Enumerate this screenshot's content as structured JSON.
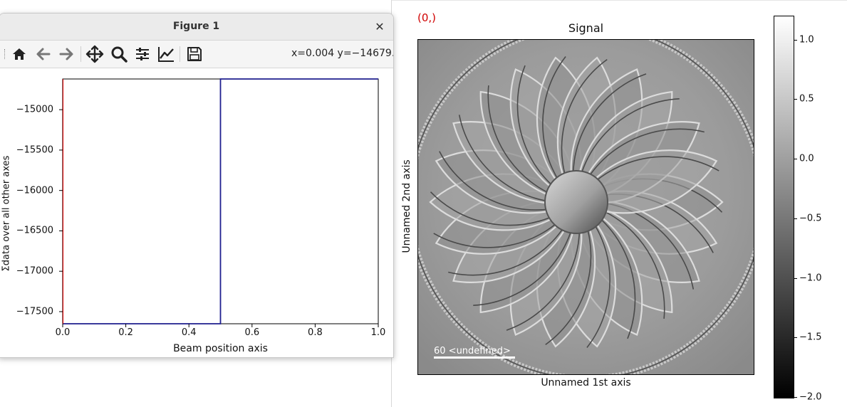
{
  "signal_figure": {
    "index_label": "(0,)",
    "index_label_color": "#d00000",
    "title": "Signal",
    "x_axis_label": "Unnamed 1st axis",
    "y_axis_label": "Unnamed 2nd axis",
    "scalebar_text": "60 <undefined>",
    "colorbar": {
      "min": -2.0,
      "max": 1.2,
      "ticks": [
        "1.0",
        "0.5",
        "0.0",
        "−0.5",
        "−1.0",
        "−1.5",
        "−2.0"
      ],
      "tick_values": [
        1.0,
        0.5,
        0.0,
        -0.5,
        -1.0,
        -1.5,
        -2.0
      ]
    },
    "image_icon": "rosette-pattern-grayscale-image"
  },
  "figure_window": {
    "title": "Figure 1",
    "close_icon": "close-icon",
    "toolbar": {
      "buttons": [
        "home-icon",
        "back-icon",
        "forward-icon",
        "pan-icon",
        "zoom-icon",
        "configure-subplots-icon",
        "edit-axes-icon",
        "save-icon"
      ]
    },
    "coord_readout": "x=0.004 y=−14679."
  },
  "chart_data": {
    "type": "line",
    "title": "",
    "xlabel": "Beam position axis",
    "ylabel": "Σdata over all other axes",
    "xlim": [
      0.0,
      1.0
    ],
    "ylim": [
      -17650,
      -14620
    ],
    "x_ticks": [
      "0.0",
      "0.2",
      "0.4",
      "0.6",
      "0.8",
      "1.0"
    ],
    "x_tick_values": [
      0.0,
      0.2,
      0.4,
      0.6,
      0.8,
      1.0
    ],
    "y_ticks": [
      "−15000",
      "−15500",
      "−16000",
      "−16500",
      "−17000",
      "−17500"
    ],
    "y_tick_values": [
      -15000,
      -15500,
      -16000,
      -16500,
      -17000,
      -17500
    ],
    "series": [
      {
        "color": "#1f1f8f",
        "x": [
          0.0,
          0.5,
          0.5,
          1.0
        ],
        "y": [
          -17650,
          -17650,
          -14620,
          -14620
        ]
      }
    ],
    "vertical_marker": {
      "x": 0.0,
      "color": "#e00000"
    }
  }
}
